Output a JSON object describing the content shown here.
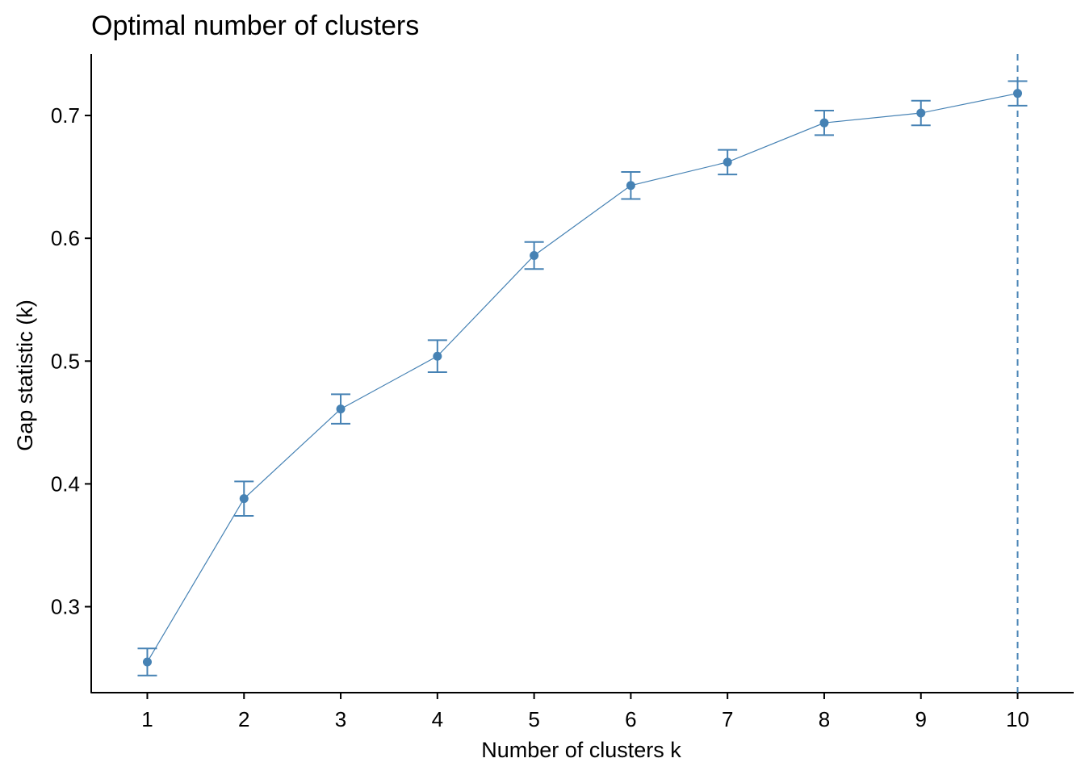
{
  "chart_data": {
    "type": "line",
    "title": "Optimal number of clusters",
    "xlabel": "Number of clusters k",
    "ylabel": "Gap statistic (k)",
    "x": [
      1,
      2,
      3,
      4,
      5,
      6,
      7,
      8,
      9,
      10
    ],
    "xticks": [
      "1",
      "2",
      "3",
      "4",
      "5",
      "6",
      "7",
      "8",
      "9",
      "10"
    ],
    "yticks": [
      0.3,
      0.4,
      0.5,
      0.6,
      0.7
    ],
    "ytick_labels": [
      "0.3",
      "0.4",
      "0.5",
      "0.6",
      "0.7"
    ],
    "ylim": [
      0.23,
      0.75
    ],
    "xlim": [
      0.42,
      10.58
    ],
    "grid": false,
    "series": [
      {
        "values": [
          0.255,
          0.388,
          0.461,
          0.504,
          0.586,
          0.643,
          0.662,
          0.694,
          0.702,
          0.718
        ],
        "errors": [
          0.011,
          0.014,
          0.012,
          0.013,
          0.011,
          0.011,
          0.01,
          0.01,
          0.01,
          0.01
        ]
      }
    ],
    "optimal_k": 10,
    "colors": {
      "series": "#4682B4",
      "axis": "#000000"
    }
  }
}
